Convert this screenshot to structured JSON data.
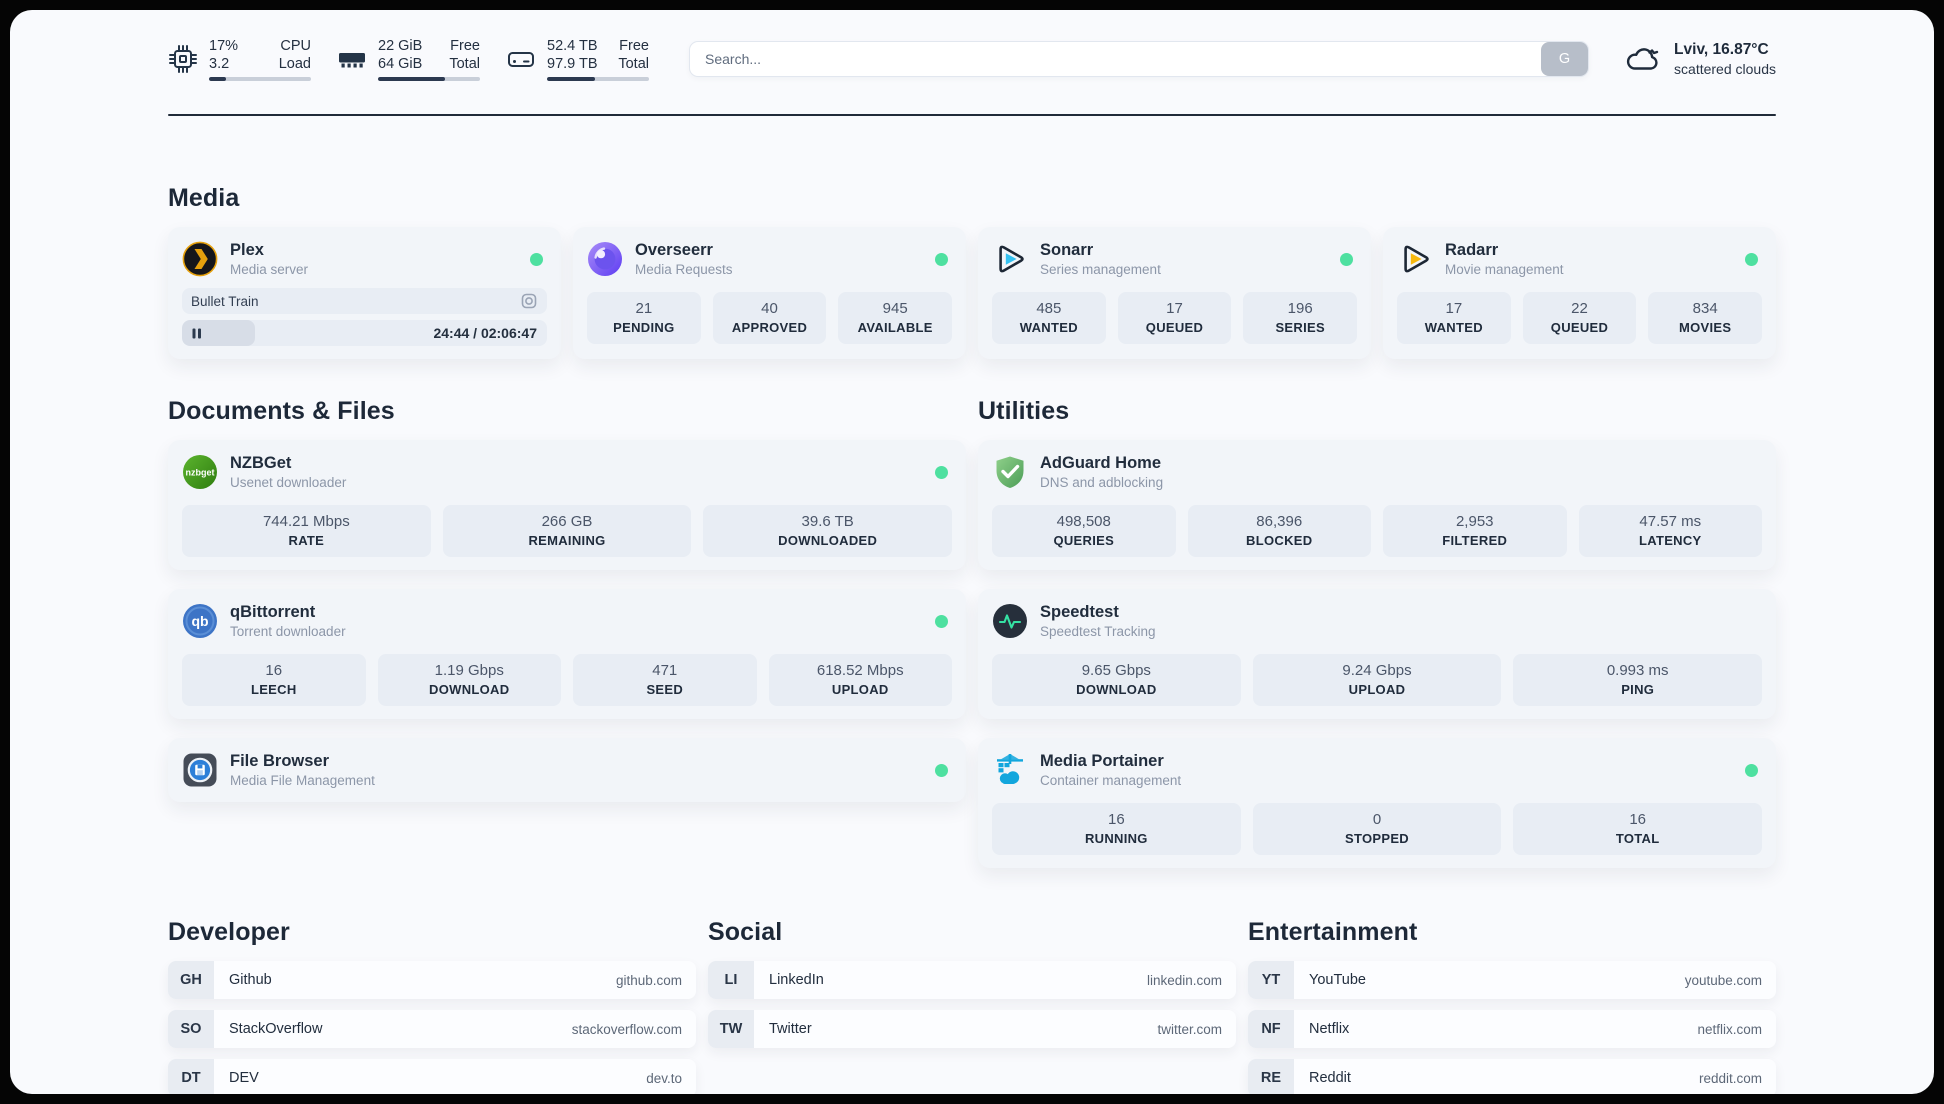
{
  "colors": {
    "status_online": "#4ee0a0",
    "progress_fill": "#2c3950",
    "plex_brand": "#e5a00d",
    "overseerr_brand": "#6d4df6",
    "sonarr_brand": "#35c2f2",
    "radarr_brand": "#f6b80e",
    "nzbget_brand": "#459e1d",
    "qbittorrent_brand": "#3d74c6",
    "adguard_brand": "#5fae63",
    "speedtest_pulse": "#35e2a4",
    "portainer_brand": "#12a6dd",
    "filebrowser_brand": "#2d7fd8"
  },
  "header": {
    "cpu": {
      "value_top": "17%",
      "value_bottom": "3.2",
      "label_top": "CPU",
      "label_bottom": "Load",
      "progress": 17
    },
    "memory": {
      "value_top": "22 GiB",
      "value_bottom": "64 GiB",
      "label_top": "Free",
      "label_bottom": "Total",
      "progress": 66
    },
    "disk": {
      "value_top": "52.4 TB",
      "value_bottom": "97.9 TB",
      "label_top": "Free",
      "label_bottom": "Total",
      "progress": 47
    },
    "search": {
      "placeholder": "Search...",
      "button_label": "G"
    },
    "weather": {
      "location_temp": "Lviv, 16.87°C",
      "condition": "scattered clouds"
    }
  },
  "sections": {
    "media": "Media",
    "documents": "Documents & Files",
    "utilities": "Utilities",
    "developer": "Developer",
    "social": "Social",
    "entertainment": "Entertainment"
  },
  "apps": {
    "plex": {
      "name": "Plex",
      "subtitle": "Media server",
      "now_playing": "Bullet Train",
      "time": "24:44 / 02:06:47",
      "progress": 20
    },
    "overseerr": {
      "name": "Overseerr",
      "subtitle": "Media Requests",
      "stats": [
        {
          "value": "21",
          "label": "PENDING"
        },
        {
          "value": "40",
          "label": "APPROVED"
        },
        {
          "value": "945",
          "label": "AVAILABLE"
        }
      ]
    },
    "sonarr": {
      "name": "Sonarr",
      "subtitle": "Series management",
      "stats": [
        {
          "value": "485",
          "label": "WANTED"
        },
        {
          "value": "17",
          "label": "QUEUED"
        },
        {
          "value": "196",
          "label": "SERIES"
        }
      ]
    },
    "radarr": {
      "name": "Radarr",
      "subtitle": "Movie management",
      "stats": [
        {
          "value": "17",
          "label": "WANTED"
        },
        {
          "value": "22",
          "label": "QUEUED"
        },
        {
          "value": "834",
          "label": "MOVIES"
        }
      ]
    },
    "nzbget": {
      "name": "NZBGet",
      "subtitle": "Usenet downloader",
      "stats": [
        {
          "value": "744.21 Mbps",
          "label": "RATE"
        },
        {
          "value": "266 GB",
          "label": "REMAINING"
        },
        {
          "value": "39.6 TB",
          "label": "DOWNLOADED"
        }
      ]
    },
    "qbittorrent": {
      "name": "qBittorrent",
      "subtitle": "Torrent downloader",
      "stats": [
        {
          "value": "16",
          "label": "LEECH"
        },
        {
          "value": "1.19 Gbps",
          "label": "DOWNLOAD"
        },
        {
          "value": "471",
          "label": "SEED"
        },
        {
          "value": "618.52 Mbps",
          "label": "UPLOAD"
        }
      ]
    },
    "filebrowser": {
      "name": "File Browser",
      "subtitle": "Media File Management"
    },
    "adguard": {
      "name": "AdGuard Home",
      "subtitle": "DNS and adblocking",
      "stats": [
        {
          "value": "498,508",
          "label": "QUERIES"
        },
        {
          "value": "86,396",
          "label": "BLOCKED"
        },
        {
          "value": "2,953",
          "label": "FILTERED"
        },
        {
          "value": "47.57 ms",
          "label": "LATENCY"
        }
      ]
    },
    "speedtest": {
      "name": "Speedtest",
      "subtitle": "Speedtest Tracking",
      "stats": [
        {
          "value": "9.65 Gbps",
          "label": "DOWNLOAD"
        },
        {
          "value": "9.24 Gbps",
          "label": "UPLOAD"
        },
        {
          "value": "0.993 ms",
          "label": "PING"
        }
      ]
    },
    "portainer": {
      "name": "Media Portainer",
      "subtitle": "Container management",
      "stats": [
        {
          "value": "16",
          "label": "RUNNING"
        },
        {
          "value": "0",
          "label": "STOPPED"
        },
        {
          "value": "16",
          "label": "TOTAL"
        }
      ]
    }
  },
  "bookmarks": {
    "developer": [
      {
        "abbr": "GH",
        "label": "Github",
        "url": "github.com"
      },
      {
        "abbr": "SO",
        "label": "StackOverflow",
        "url": "stackoverflow.com"
      },
      {
        "abbr": "DT",
        "label": "DEV",
        "url": "dev.to"
      }
    ],
    "social": [
      {
        "abbr": "LI",
        "label": "LinkedIn",
        "url": "linkedin.com"
      },
      {
        "abbr": "TW",
        "label": "Twitter",
        "url": "twitter.com"
      }
    ],
    "entertainment": [
      {
        "abbr": "YT",
        "label": "YouTube",
        "url": "youtube.com"
      },
      {
        "abbr": "NF",
        "label": "Netflix",
        "url": "netflix.com"
      },
      {
        "abbr": "RE",
        "label": "Reddit",
        "url": "reddit.com"
      }
    ]
  }
}
